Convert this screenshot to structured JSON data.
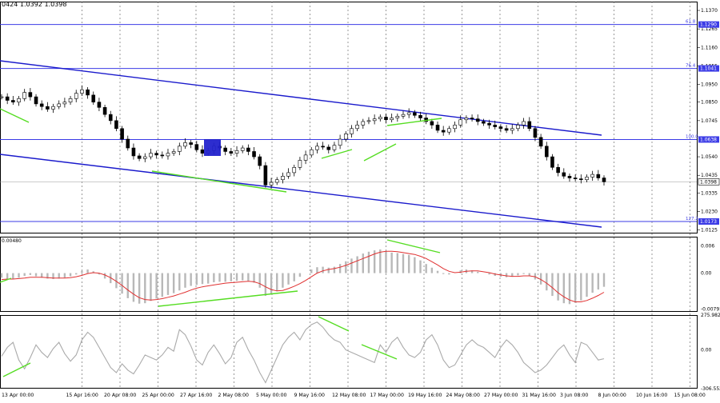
{
  "header": {
    "ohlc_text": "0424 1.0392 1.0398"
  },
  "chart_data": [
    {
      "type": "line",
      "name": "price",
      "ylim": [
        1.0125,
        1.14
      ],
      "y_ticks": [
        "1.1370",
        "1.1265",
        "1.1160",
        "1.1055",
        "1.0950",
        "1.0850",
        "1.0745",
        "1.0540",
        "1.0435",
        "1.0335",
        "1.0230",
        "1.0125"
      ],
      "levels": [
        {
          "fib": "61.8",
          "price": "1.1290",
          "y": 1.129
        },
        {
          "fib": "76.4",
          "price": "1.1041",
          "y": 1.1041
        },
        {
          "fib": "100.0",
          "price": "1.0638",
          "y": 1.0638
        },
        {
          "fib": "127.2",
          "price": "1.0173",
          "y": 1.0173
        }
      ],
      "current_price": "1.0398",
      "close": [
        1.088,
        1.086,
        1.085,
        1.087,
        1.0905,
        1.088,
        1.084,
        1.0825,
        1.081,
        1.0825,
        1.084,
        1.085,
        1.087,
        1.09,
        1.092,
        1.089,
        1.085,
        1.082,
        1.078,
        1.0745,
        1.07,
        1.064,
        1.059,
        1.0545,
        1.053,
        1.054,
        1.056,
        1.055,
        1.0545,
        1.056,
        1.057,
        1.06,
        1.062,
        1.061,
        1.058,
        1.056,
        1.0575,
        1.06,
        1.059,
        1.057,
        1.056,
        1.0575,
        1.059,
        1.057,
        1.054,
        1.049,
        1.038,
        1.0395,
        1.041,
        1.043,
        1.045,
        1.048,
        1.052,
        1.055,
        1.058,
        1.06,
        1.0595,
        1.058,
        1.0605,
        1.064,
        1.067,
        1.07,
        1.072,
        1.074,
        1.0745,
        1.0755,
        1.0765,
        1.075,
        1.076,
        1.077,
        1.078,
        1.079,
        1.0775,
        1.076,
        1.074,
        1.072,
        1.069,
        1.068,
        1.07,
        1.072,
        1.075,
        1.076,
        1.0755,
        1.074,
        1.073,
        1.072,
        1.071,
        1.07,
        1.069,
        1.07,
        1.072,
        1.074,
        1.07,
        1.065,
        1.06,
        1.054,
        1.048,
        1.045,
        1.043,
        1.042,
        1.0415,
        1.041,
        1.0425,
        1.044,
        1.042,
        1.0398
      ]
    },
    {
      "type": "bar",
      "name": "macd",
      "y_ticks": [
        "0.006",
        "0.00",
        "-0.00791"
      ],
      "label": "0.00480",
      "ylim": [
        -0.00791,
        0.008
      ],
      "histogram": [
        -0.001,
        -0.0012,
        -0.0013,
        -0.001,
        -0.0006,
        -0.0004,
        -0.0007,
        -0.001,
        -0.0012,
        -0.0013,
        -0.0012,
        -0.001,
        -0.0007,
        -0.0003,
        0.0005,
        0.0008,
        0.0004,
        -0.0003,
        -0.0012,
        -0.0022,
        -0.0033,
        -0.0045,
        -0.0055,
        -0.0063,
        -0.0067,
        -0.0066,
        -0.0061,
        -0.0056,
        -0.0052,
        -0.0048,
        -0.0044,
        -0.0038,
        -0.0032,
        -0.0028,
        -0.0026,
        -0.0024,
        -0.0023,
        -0.002,
        -0.0019,
        -0.0019,
        -0.0018,
        -0.0017,
        -0.0016,
        -0.0017,
        -0.0021,
        -0.0032,
        -0.005,
        -0.0046,
        -0.004,
        -0.0032,
        -0.0025,
        -0.0018,
        -0.0008,
        0.0,
        0.0008,
        0.0013,
        0.0014,
        0.0012,
        0.0014,
        0.002,
        0.0026,
        0.0032,
        0.0037,
        0.0043,
        0.0047,
        0.005,
        0.0052,
        0.0048,
        0.0045,
        0.0044,
        0.0042,
        0.004,
        0.0035,
        0.0028,
        0.002,
        0.0012,
        0.0005,
        -0.0002,
        -0.0003,
        0.0,
        0.0006,
        0.0008,
        0.0006,
        0.0003,
        0.0,
        -0.0003,
        -0.0006,
        -0.0008,
        -0.0009,
        -0.0008,
        -0.0005,
        -0.0002,
        -0.0006,
        -0.0014,
        -0.0025,
        -0.0038,
        -0.005,
        -0.006,
        -0.0066,
        -0.0068,
        -0.0065,
        -0.006,
        -0.0052,
        -0.0043,
        -0.0036,
        -0.003
      ],
      "signal": [
        -0.0014,
        -0.0013,
        -0.0013,
        -0.0012,
        -0.0011,
        -0.0009,
        -0.0009,
        -0.0009,
        -0.001,
        -0.0011,
        -0.0011,
        -0.0011,
        -0.001,
        -0.0008,
        -0.0005,
        -0.0001,
        0.0001,
        0.0,
        -0.0004,
        -0.001,
        -0.0018,
        -0.0027,
        -0.0037,
        -0.0046,
        -0.0054,
        -0.0058,
        -0.0059,
        -0.0058,
        -0.0056,
        -0.0053,
        -0.005,
        -0.0046,
        -0.0042,
        -0.0037,
        -0.0033,
        -0.003,
        -0.0028,
        -0.0026,
        -0.0024,
        -0.0022,
        -0.0021,
        -0.002,
        -0.0019,
        -0.0018,
        -0.0019,
        -0.0023,
        -0.003,
        -0.0036,
        -0.0039,
        -0.0038,
        -0.0034,
        -0.0029,
        -0.0023,
        -0.0016,
        -0.0008,
        0.0,
        0.0005,
        0.0008,
        0.001,
        0.0013,
        0.0017,
        0.0022,
        0.0027,
        0.0032,
        0.0037,
        0.0042,
        0.0046,
        0.0048,
        0.0048,
        0.0047,
        0.0045,
        0.0043,
        0.0041,
        0.0037,
        0.0032,
        0.0025,
        0.0018,
        0.001,
        0.0004,
        0.0001,
        0.0002,
        0.0004,
        0.0005,
        0.0005,
        0.0003,
        0.0001,
        -0.0002,
        -0.0004,
        -0.0006,
        -0.0007,
        -0.0007,
        -0.0006,
        -0.0006,
        -0.0008,
        -0.0014,
        -0.0022,
        -0.0032,
        -0.0043,
        -0.0052,
        -0.0059,
        -0.0063,
        -0.0063,
        -0.006,
        -0.0055,
        -0.0049,
        -0.0042
      ]
    },
    {
      "type": "line",
      "name": "cci",
      "y_ticks": [
        "275.982",
        "0.00",
        "-306.552"
      ],
      "ylim": [
        -306.552,
        275.982
      ],
      "values": [
        -50,
        20,
        60,
        -80,
        -150,
        -60,
        40,
        -20,
        -60,
        10,
        60,
        -30,
        -90,
        -40,
        80,
        140,
        100,
        20,
        -60,
        -140,
        -180,
        -110,
        -160,
        -190,
        -120,
        -40,
        -60,
        -80,
        -40,
        20,
        -10,
        160,
        120,
        30,
        -80,
        -120,
        -20,
        40,
        -30,
        -110,
        -60,
        60,
        100,
        0,
        -80,
        -180,
        -260,
        -160,
        -60,
        40,
        100,
        140,
        80,
        160,
        200,
        220,
        180,
        120,
        80,
        60,
        0,
        -20,
        -40,
        -60,
        -80,
        -100,
        40,
        -20,
        60,
        100,
        20,
        -40,
        -60,
        -20,
        80,
        120,
        40,
        -80,
        -140,
        -120,
        -40,
        40,
        80,
        40,
        20,
        -20,
        -60,
        20,
        80,
        40,
        -20,
        -100,
        -140,
        -180,
        -160,
        -120,
        -60,
        0,
        40,
        -40,
        -100,
        60,
        40,
        -20,
        -80,
        -70
      ],
      "line_color": "#aaaaaa"
    }
  ],
  "x_ticks": [
    "13 Apr 00:00",
    "15 Apr 16:00",
    "20 Apr 08:00",
    "25 Apr 00:00",
    "27 Apr 16:00",
    "2 May 08:00",
    "5 May 00:00",
    "9 May 16:00",
    "12 May 08:00",
    "17 May 00:00",
    "19 May 16:00",
    "24 May 08:00",
    "27 May 00:00",
    "31 May 16:00",
    "3 Jun 08:00",
    "8 Jun 00:00",
    "10 Jun 16:00",
    "15 Jun 08:00"
  ],
  "colors": {
    "channel": "#1a1acc",
    "level": "#3b3be6",
    "divergence": "#55dd22",
    "macd_signal": "#e03030",
    "histogram": "#b8b8b8",
    "marker": "#2222cc",
    "candle": "#000000"
  }
}
